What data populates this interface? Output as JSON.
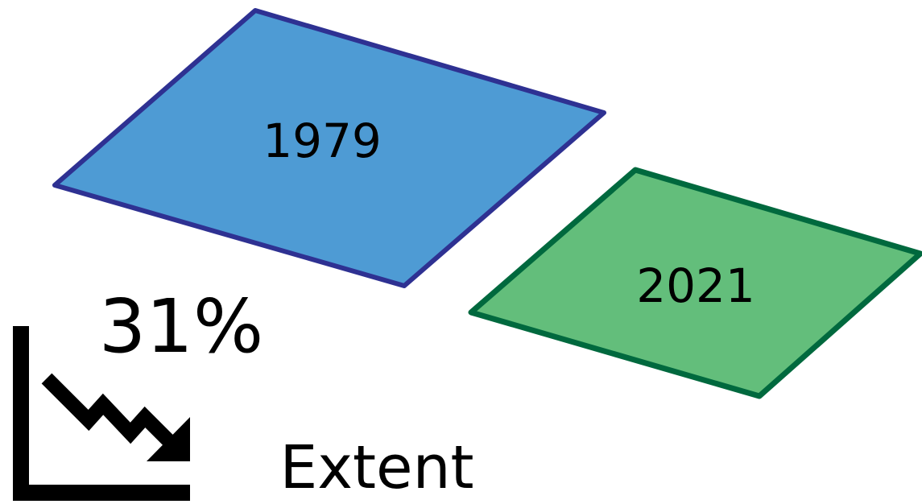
{
  "panels": [
    {
      "year": "1979",
      "fill": "#4E9BD4",
      "stroke": "#2E3192"
    },
    {
      "year": "2021",
      "fill": "#63BE7B",
      "stroke": "#00693E"
    }
  ],
  "change": {
    "percent": "31%",
    "metric": "Extent",
    "icon": "decreasing-trend-chart-icon"
  }
}
